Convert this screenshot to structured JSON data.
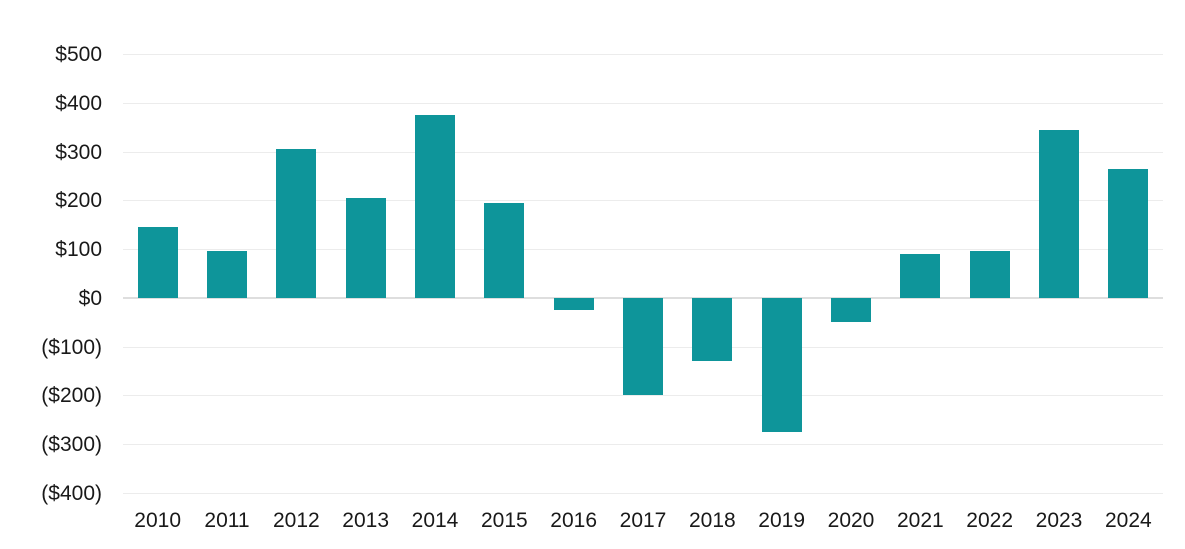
{
  "chart_data": {
    "type": "bar",
    "title": "",
    "xlabel": "",
    "ylabel": "",
    "categories": [
      "2010",
      "2011",
      "2012",
      "2013",
      "2014",
      "2015",
      "2016",
      "2017",
      "2018",
      "2019",
      "2020",
      "2021",
      "2022",
      "2023",
      "2024"
    ],
    "values": [
      145,
      95,
      305,
      205,
      375,
      195,
      -25,
      -200,
      -130,
      -275,
      -50,
      90,
      95,
      345,
      265
    ],
    "ylim": [
      -400,
      500
    ],
    "y_ticks": [
      {
        "value": 500,
        "label": "$500"
      },
      {
        "value": 400,
        "label": "$400"
      },
      {
        "value": 300,
        "label": "$300"
      },
      {
        "value": 200,
        "label": "$200"
      },
      {
        "value": 100,
        "label": "$100"
      },
      {
        "value": 0,
        "label": "$0"
      },
      {
        "value": -100,
        "label": "($100)"
      },
      {
        "value": -200,
        "label": "($200)"
      },
      {
        "value": -300,
        "label": "($300)"
      },
      {
        "value": -400,
        "label": "($400)"
      }
    ],
    "grid": "horizontal",
    "legend": "none",
    "colors": {
      "bar": "#0E959A",
      "gridline": "#ececec",
      "zero_line": "#dedede",
      "tick_text": "#191919",
      "background": "#ffffff"
    }
  }
}
